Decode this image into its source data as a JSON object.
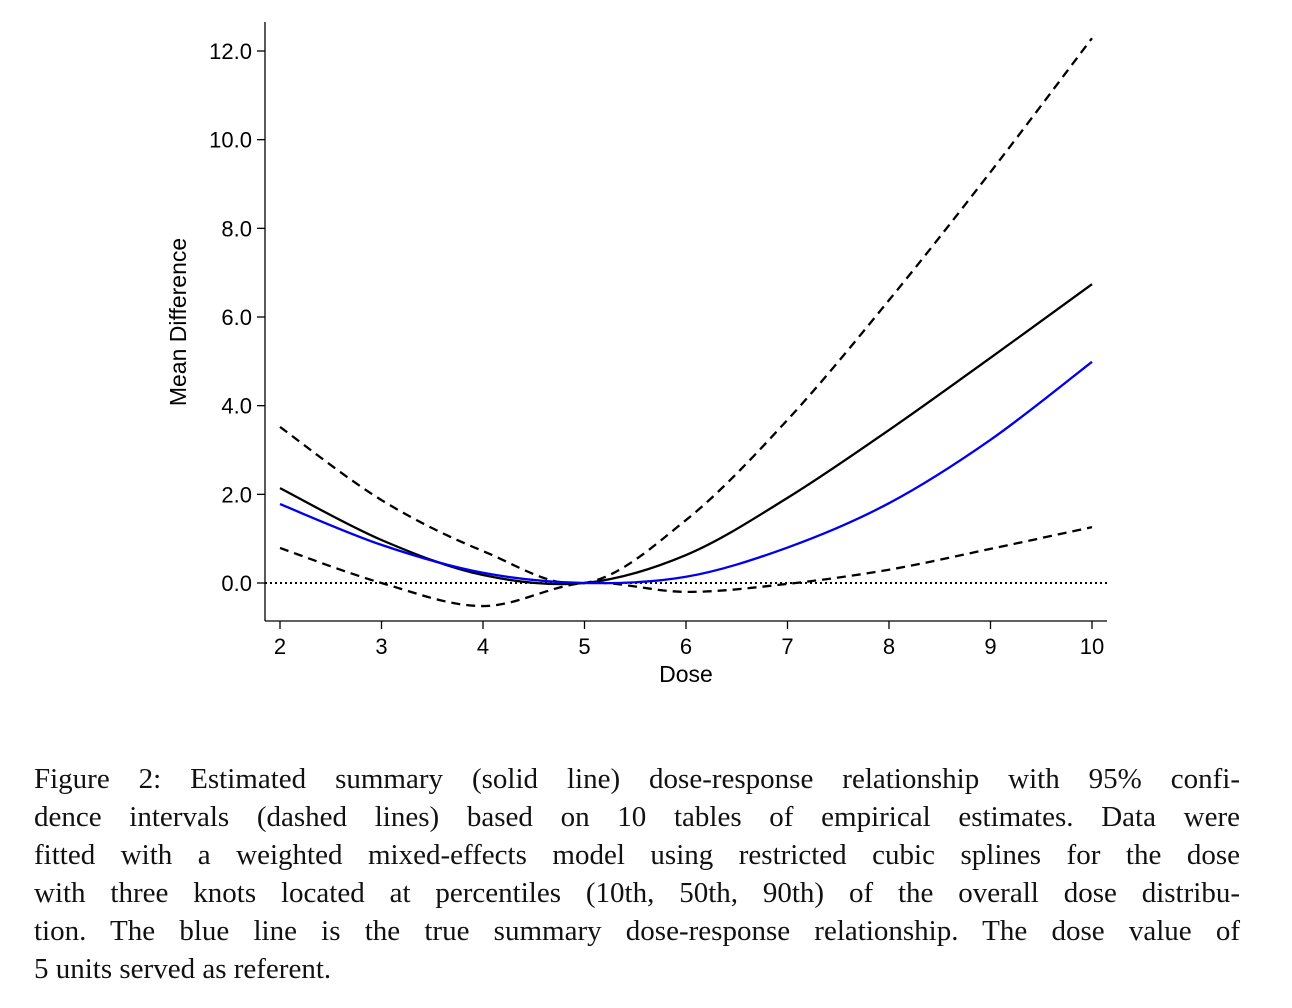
{
  "chart_data": {
    "type": "line",
    "title": "",
    "xlabel": "Dose",
    "ylabel": "Mean Difference",
    "xlim": [
      1.85,
      10.15
    ],
    "ylim": [
      -0.86,
      12.65
    ],
    "x_ticks": [
      2,
      3,
      4,
      5,
      6,
      7,
      8,
      9,
      10
    ],
    "x_tick_labels": [
      "2",
      "3",
      "4",
      "5",
      "6",
      "7",
      "8",
      "9",
      "10"
    ],
    "y_ticks": [
      0,
      2,
      4,
      6,
      8,
      10,
      12
    ],
    "y_tick_labels": [
      "0.0",
      "2.0",
      "4.0",
      "6.0",
      "8.0",
      "10.0",
      "12.0"
    ],
    "grid": false,
    "reference_line": {
      "y": 0,
      "style": "dotted"
    },
    "x": [
      2,
      3,
      4,
      5,
      6,
      7,
      8,
      9,
      10
    ],
    "series": [
      {
        "name": "Estimated summary",
        "style": "solid",
        "color": "#000000",
        "values": [
          2.14,
          0.97,
          0.18,
          0.0,
          0.63,
          1.92,
          3.45,
          5.08,
          6.74
        ]
      },
      {
        "name": "Upper 95% CI",
        "style": "dashed",
        "color": "#000000",
        "values": [
          3.52,
          1.87,
          0.72,
          0.0,
          1.42,
          3.68,
          6.38,
          9.27,
          12.29
        ]
      },
      {
        "name": "Lower 95% CI",
        "style": "dashed",
        "color": "#000000",
        "values": [
          0.79,
          0.0,
          -0.52,
          0.0,
          -0.2,
          -0.02,
          0.3,
          0.77,
          1.26
        ]
      },
      {
        "name": "True summary",
        "style": "solid",
        "color": "#0000ee",
        "values": [
          1.78,
          0.86,
          0.23,
          0.0,
          0.14,
          0.8,
          1.8,
          3.23,
          4.99
        ]
      }
    ]
  },
  "caption": {
    "lines": [
      "Figure 2: Estimated summary (solid line) dose-response relationship with 95% confi-",
      "dence intervals (dashed lines) based on 10 tables of empirical estimates. Data were",
      "fitted with a weighted mixed-effects model using restricted cubic splines for the dose",
      "with three knots located at percentiles (10th, 50th, 90th) of the overall dose distribu-",
      "tion. The blue line is the true summary dose-response relationship. The dose value of",
      "5 units served as referent."
    ]
  }
}
